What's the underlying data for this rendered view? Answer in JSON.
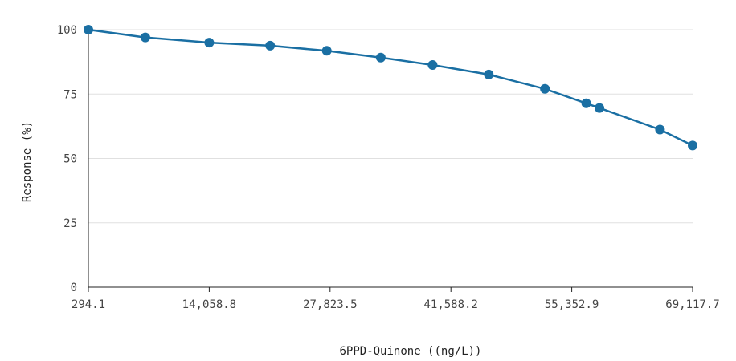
{
  "chart_data": {
    "type": "line",
    "title": "",
    "xlabel": "6PPD-Quinone ((ng/L))",
    "ylabel": "Response (%)",
    "xlim": [
      294.1,
      69117.7
    ],
    "ylim": [
      0,
      100
    ],
    "x_ticks": [
      294.1,
      14058.8,
      27823.5,
      41588.2,
      55352.9,
      69117.7
    ],
    "x_tick_labels": [
      "294.1",
      "14,058.8",
      "27,823.5",
      "41,588.2",
      "55,352.9",
      "69,117.7"
    ],
    "y_ticks": [
      0,
      25,
      50,
      75,
      100
    ],
    "y_tick_labels": [
      "0",
      "25",
      "50",
      "75",
      "100"
    ],
    "grid": "horizontal",
    "color": "#1a6fa3",
    "series": [
      {
        "x": [
          294.1,
          6780,
          14058.8,
          21000,
          27450,
          33600,
          39500,
          45900,
          52300,
          57000,
          58500,
          65400,
          69117.7
        ],
        "y": [
          100,
          97,
          95,
          93.8,
          91.8,
          89.2,
          86.3,
          82.6,
          77,
          71.4,
          69.6,
          61.2,
          55
        ]
      }
    ]
  }
}
